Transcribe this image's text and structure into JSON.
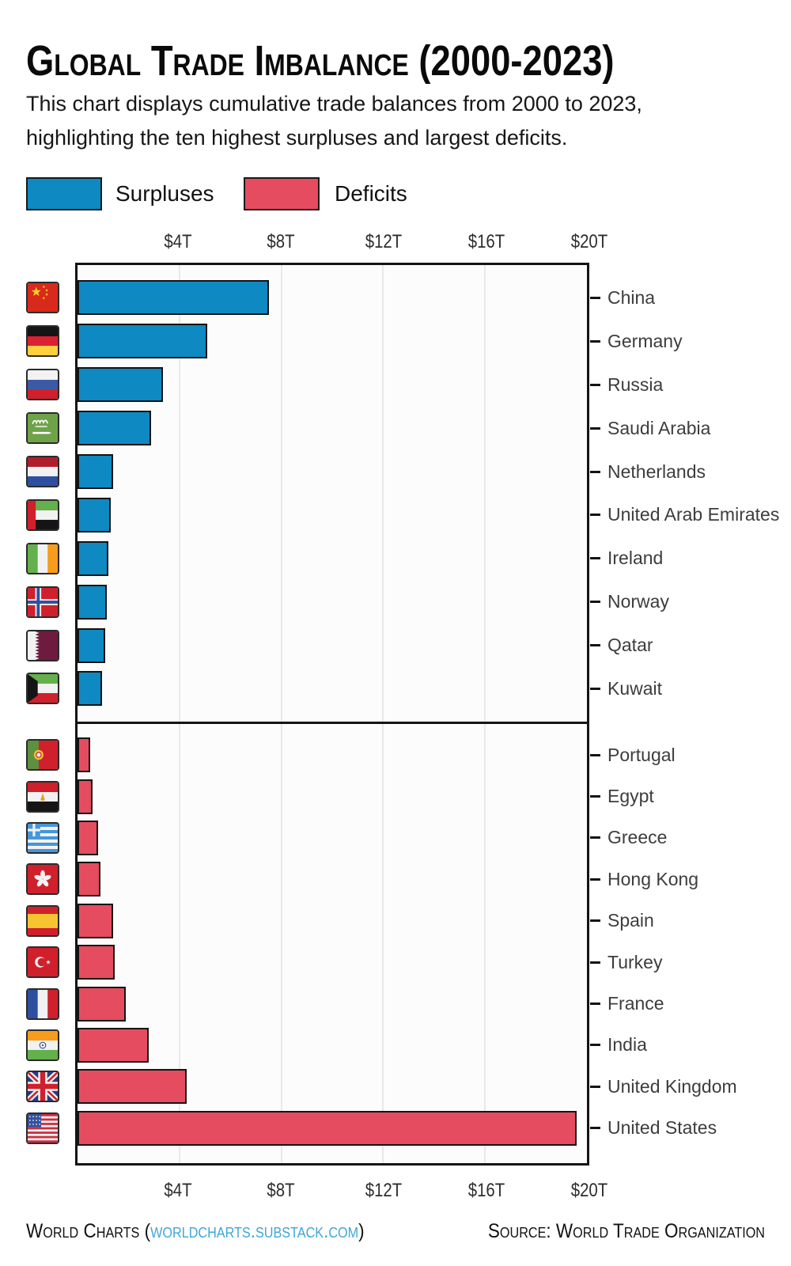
{
  "title": "Global Trade Imbalance (2000-2023)",
  "subtitle_line1": "This chart displays cumulative trade balances from 2000 to 2023,",
  "subtitle_line2": "highlighting the ten highest surpluses and largest deficits.",
  "legend": {
    "surplus_label": "Surpluses",
    "deficit_label": "Deficits"
  },
  "colors": {
    "surplus": "#0e89c2",
    "deficit": "#e54c60",
    "link": "#3fa6d9"
  },
  "footer": {
    "left_prefix": "World Charts (",
    "link": "worldcharts.substack.com",
    "left_suffix": ")",
    "source": "Source: World Trade Organization"
  },
  "chart_data": {
    "type": "bar",
    "orientation": "horizontal",
    "unit": "trillion USD",
    "title": "Global Trade Imbalance (2000-2023)",
    "x_max": 20,
    "tick_values": [
      4,
      8,
      12,
      16,
      20
    ],
    "x_ticks": [
      "$4T",
      "$8T",
      "$12T",
      "$16T",
      "$20T"
    ],
    "grid": true,
    "legend_position": "top-left",
    "surpluses": [
      {
        "country": "China",
        "flag": "cn",
        "value": 7.5
      },
      {
        "country": "Germany",
        "flag": "de",
        "value": 5.1
      },
      {
        "country": "Russia",
        "flag": "ru",
        "value": 3.35
      },
      {
        "country": "Saudi Arabia",
        "flag": "sa",
        "value": 2.9
      },
      {
        "country": "Netherlands",
        "flag": "nl",
        "value": 1.4
      },
      {
        "country": "United Arab Emirates",
        "flag": "ae",
        "value": 1.3
      },
      {
        "country": "Ireland",
        "flag": "ie",
        "value": 1.2
      },
      {
        "country": "Norway",
        "flag": "no",
        "value": 1.15
      },
      {
        "country": "Qatar",
        "flag": "qa",
        "value": 1.1
      },
      {
        "country": "Kuwait",
        "flag": "kw",
        "value": 0.95
      }
    ],
    "deficits": [
      {
        "country": "Portugal",
        "flag": "pt",
        "value": 0.5
      },
      {
        "country": "Egypt",
        "flag": "eg",
        "value": 0.6
      },
      {
        "country": "Greece",
        "flag": "gr",
        "value": 0.8
      },
      {
        "country": "Hong Kong",
        "flag": "hk",
        "value": 0.9
      },
      {
        "country": "Spain",
        "flag": "es",
        "value": 1.4
      },
      {
        "country": "Turkey",
        "flag": "tr",
        "value": 1.45
      },
      {
        "country": "France",
        "flag": "fr",
        "value": 1.9
      },
      {
        "country": "India",
        "flag": "in",
        "value": 2.8
      },
      {
        "country": "United Kingdom",
        "flag": "gb",
        "value": 4.3
      },
      {
        "country": "United States",
        "flag": "us",
        "value": 19.6
      }
    ]
  }
}
